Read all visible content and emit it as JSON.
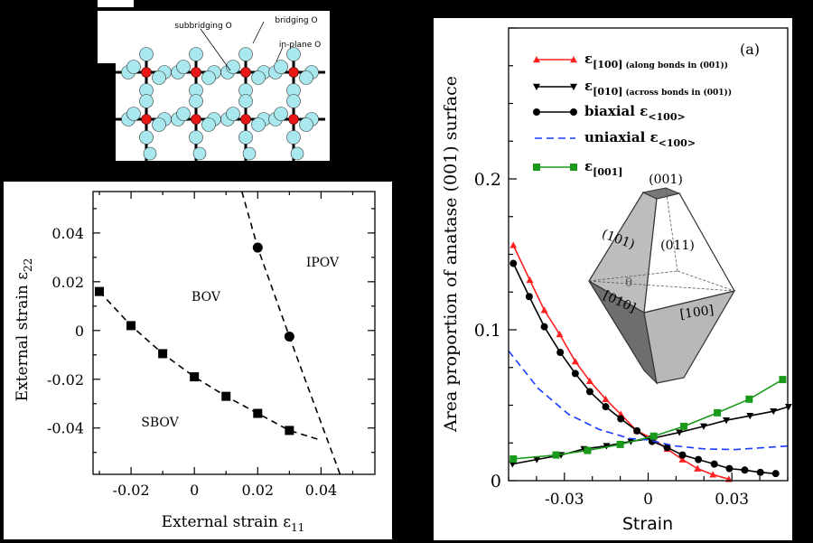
{
  "structure_image": {
    "labels": [
      "subbridging O",
      "bridging O",
      "in-plane O"
    ],
    "colors": {
      "oxygen": "#a8e8ee",
      "titanium": "#e81818",
      "bond": "#000000"
    }
  },
  "chart_data": [
    {
      "type": "scatter",
      "xlabel": {
        "main": "External strain ε",
        "sub": "11"
      },
      "ylabel": {
        "main": "External strain ε",
        "sub": "22"
      },
      "xlim": [
        -0.032,
        0.057
      ],
      "ylim": [
        -0.059,
        0.057
      ],
      "xticks": [
        -0.02,
        0,
        0.02,
        0.04
      ],
      "xtick_labels": [
        "-0.02",
        "0",
        "0.02",
        "0.04"
      ],
      "yticks": [
        -0.04,
        -0.02,
        0,
        0.02,
        0.04
      ],
      "ytick_labels": [
        "-0.04",
        "-0.02",
        "0",
        "0.02",
        "0.04"
      ],
      "grid": false,
      "region_labels": [
        "BOV",
        "IPOV",
        "SBOV"
      ],
      "series": [
        {
          "marker": "square",
          "points": [
            [
              -0.03,
              0.016
            ],
            [
              -0.02,
              0.002
            ],
            [
              -0.01,
              -0.0095
            ],
            [
              0,
              -0.019
            ],
            [
              0.01,
              -0.027
            ],
            [
              0.02,
              -0.034
            ],
            [
              0.03,
              -0.041
            ]
          ]
        },
        {
          "marker": "circle",
          "points": [
            [
              0.02,
              0.034
            ],
            [
              0.03,
              -0.0025
            ]
          ]
        }
      ],
      "boundaries": [
        {
          "style": "dashed",
          "points": [
            [
              -0.03,
              0.016
            ],
            [
              -0.02,
              0.002
            ],
            [
              -0.01,
              -0.0095
            ],
            [
              0,
              -0.019
            ],
            [
              0.01,
              -0.027
            ],
            [
              0.02,
              -0.034
            ],
            [
              0.03,
              -0.041
            ],
            [
              0.04,
              -0.045
            ]
          ]
        },
        {
          "style": "dashed",
          "points": [
            [
              0.015,
              0.057
            ],
            [
              0.02,
              0.034
            ],
            [
              0.03,
              -0.0025
            ],
            [
              0.046,
              -0.059
            ]
          ]
        }
      ]
    },
    {
      "type": "line",
      "panel_label": "(a)",
      "xlabel": "Strain",
      "ylabel": "Area proportion of anatase (001) surface",
      "xlim": [
        -0.05,
        0.05
      ],
      "ylim": [
        0,
        0.3
      ],
      "xticks": [
        -0.03,
        0,
        0.03
      ],
      "xtick_labels": [
        "-0.03",
        "0",
        "0.03"
      ],
      "yticks": [
        0,
        0.1,
        0.2
      ],
      "ytick_labels": [
        "0",
        "0.1",
        "0.2"
      ],
      "grid": false,
      "legend": "top-left",
      "series": [
        {
          "name": {
            "main": "ε",
            "sub": "[100]",
            "note": "(along bonds in (001))"
          },
          "color": "#ff2020",
          "marker": "triangle-up",
          "dash": false,
          "x": [
            -0.0483,
            -0.0424,
            -0.0372,
            -0.0317,
            -0.0261,
            -0.0209,
            -0.0152,
            -0.0098,
            -0.004,
            0.0014,
            0.0068,
            0.0123,
            0.0177,
            0.0232,
            0.0289
          ],
          "y": [
            0.156,
            0.133,
            0.113,
            0.097,
            0.079,
            0.066,
            0.054,
            0.044,
            0.033,
            0.028,
            0.021,
            0.014,
            0.008,
            0.004,
            0.001
          ]
        },
        {
          "name": {
            "main": "ε",
            "sub": "[010]",
            "note": "(across bonds in (001))"
          },
          "color": "#000000",
          "marker": "triangle-down",
          "dash": false,
          "x": [
            -0.0486,
            -0.0399,
            -0.0312,
            -0.023,
            -0.0149,
            -0.0062,
            0.0014,
            0.0112,
            0.0199,
            0.028,
            0.0365,
            0.0449,
            0.0503
          ],
          "y": [
            0.011,
            0.014,
            0.017,
            0.021,
            0.023,
            0.026,
            0.028,
            0.032,
            0.036,
            0.04,
            0.043,
            0.046,
            0.049
          ]
        },
        {
          "name": {
            "main": "biaxial ε",
            "sub": "<100>",
            "note": ""
          },
          "color": "#000000",
          "marker": "circle",
          "dash": false,
          "x": [
            -0.0483,
            -0.0426,
            -0.0372,
            -0.0315,
            -0.0261,
            -0.0209,
            -0.0152,
            -0.0098,
            -0.004,
            0.0014,
            0.0068,
            0.0123,
            0.018,
            0.0237,
            0.0291,
            0.0346,
            0.0402,
            0.0457
          ],
          "y": [
            0.144,
            0.122,
            0.102,
            0.085,
            0.071,
            0.059,
            0.049,
            0.041,
            0.033,
            0.026,
            0.022,
            0.017,
            0.014,
            0.011,
            0.008,
            0.007,
            0.0055,
            0.0047
          ]
        },
        {
          "name": {
            "main": "uniaxial ε",
            "sub": "<100>",
            "note": ""
          },
          "color": "#1a3cff",
          "marker": "none",
          "dash": true,
          "x": [
            -0.05,
            -0.0393,
            -0.0285,
            -0.0176,
            -0.0067,
            0,
            0.0096,
            0.0204,
            0.0313,
            0.0422,
            0.0503
          ],
          "y": [
            0.086,
            0.061,
            0.044,
            0.034,
            0.028,
            0.027,
            0.023,
            0.021,
            0.0206,
            0.022,
            0.023
          ]
        },
        {
          "name": {
            "main": "ε",
            "sub": "[001]",
            "note": ""
          },
          "color": "#1a9a1a",
          "marker": "square",
          "dash": false,
          "x": [
            -0.0483,
            -0.033,
            -0.0217,
            -0.01,
            0.002,
            0.0128,
            0.0248,
            0.0362,
            0.0482
          ],
          "y": [
            0.0144,
            0.017,
            0.02,
            0.024,
            0.0295,
            0.036,
            0.045,
            0.054,
            0.067
          ]
        }
      ],
      "inset_labels": [
        "(001)",
        "(101)",
        "(011)",
        "θ",
        "[010]",
        "[100]"
      ]
    }
  ]
}
